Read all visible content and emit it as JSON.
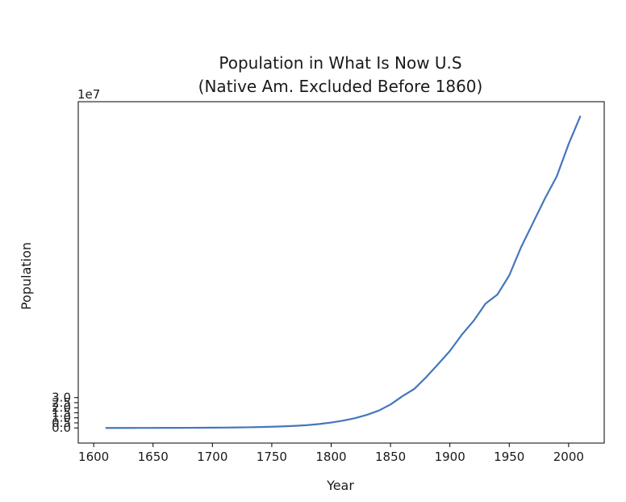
{
  "chart_data": {
    "type": "line",
    "title": "Population in What Is Now U.S",
    "subtitle": "(Native Am. Excluded Before 1860)",
    "xlabel": "Year",
    "ylabel": "Population",
    "y_offset_label": "1e7",
    "xlim": [
      1587,
      2030
    ],
    "ylim": [
      -1.5,
      32.3
    ],
    "grid": false,
    "x_ticks": [
      1600,
      1650,
      1700,
      1750,
      1800,
      1850,
      1900,
      1950,
      2000
    ],
    "y_ticks": [
      0.0,
      0.5,
      1.0,
      1.5,
      2.0,
      2.5,
      3.0
    ],
    "y_tick_labels": [
      "0.0",
      "0.5",
      "1.0",
      "1.5",
      "2.0",
      "2.5",
      "3.0"
    ],
    "series": [
      {
        "color": "#4477bb",
        "x": [
          1610,
          1620,
          1630,
          1640,
          1650,
          1660,
          1670,
          1680,
          1690,
          1700,
          1710,
          1720,
          1730,
          1740,
          1750,
          1760,
          1770,
          1780,
          1790,
          1800,
          1810,
          1820,
          1830,
          1840,
          1850,
          1860,
          1870,
          1880,
          1890,
          1900,
          1910,
          1920,
          1930,
          1940,
          1950,
          1960,
          1970,
          1980,
          1990,
          2000,
          2010
        ],
        "y": [
          0.0,
          0.0,
          0.0,
          0.003,
          0.005,
          0.008,
          0.011,
          0.015,
          0.021,
          0.025,
          0.033,
          0.047,
          0.063,
          0.091,
          0.12,
          0.16,
          0.21,
          0.28,
          0.39,
          0.53,
          0.72,
          0.96,
          1.29,
          1.71,
          2.32,
          3.14,
          3.86,
          5.02,
          6.3,
          7.62,
          9.22,
          10.6,
          12.3,
          13.2,
          15.1,
          17.9,
          20.3,
          22.7,
          24.9,
          28.1,
          30.9
        ]
      }
    ]
  }
}
